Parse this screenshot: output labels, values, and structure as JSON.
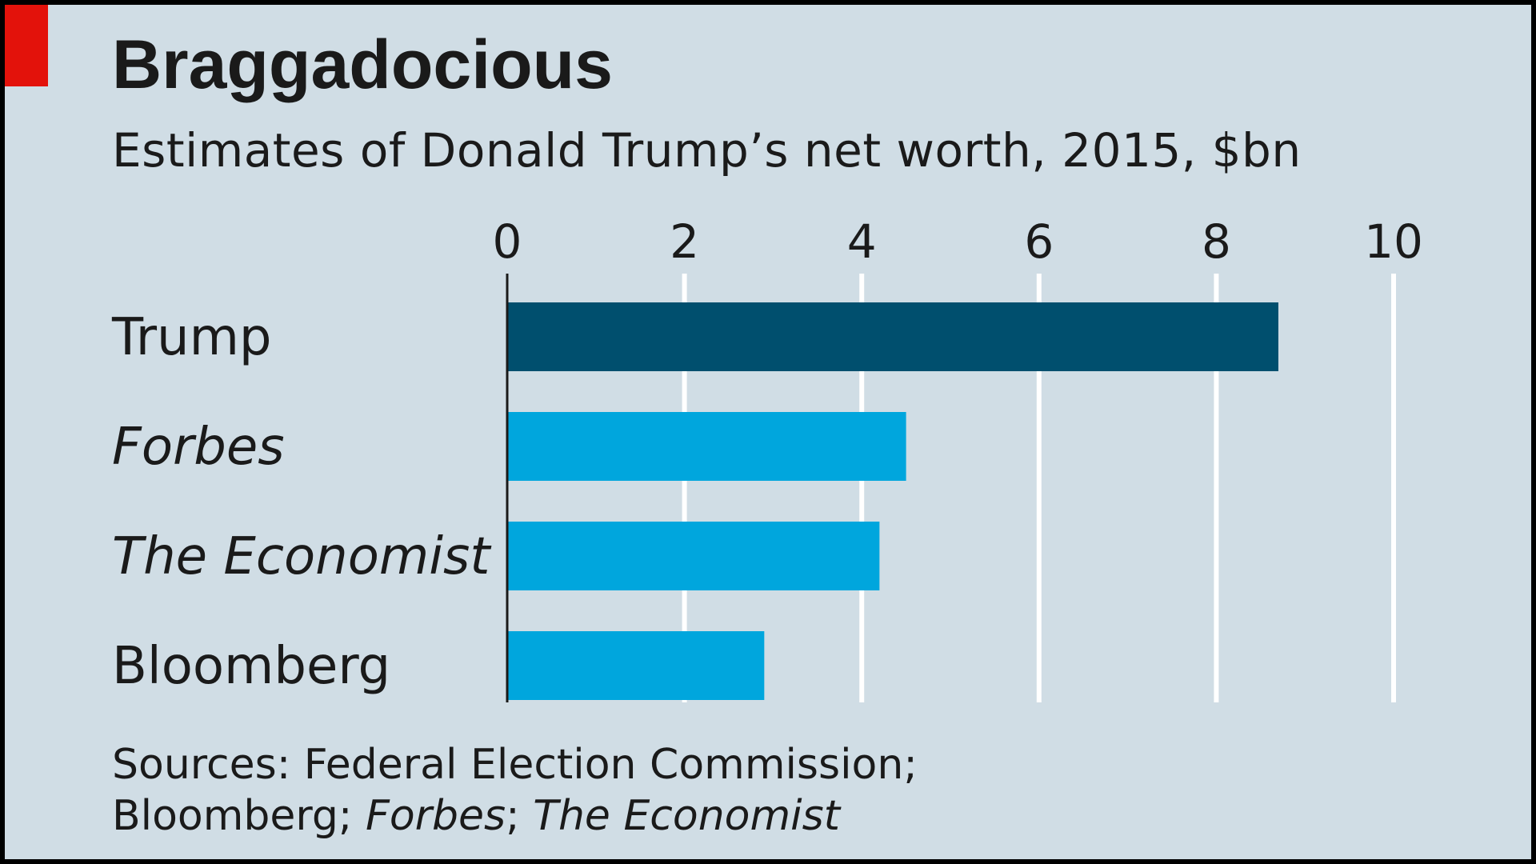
{
  "chart_data": {
    "type": "bar",
    "orientation": "horizontal",
    "title": "Braggadocious",
    "subtitle": "Estimates of Donald Trump’s net worth, 2015, $bn",
    "categories": [
      "Trump",
      "Forbes",
      "The Economist",
      "Bloomberg"
    ],
    "values": [
      8.7,
      4.5,
      4.2,
      2.9
    ],
    "xlim": [
      0,
      10
    ],
    "xticks": [
      0,
      2,
      4,
      6,
      8,
      10
    ],
    "xtick_labels": [
      "0",
      "2",
      "4",
      "6",
      "8",
      "10"
    ],
    "grid": true,
    "bar_colors": [
      "#004f6e",
      "#00a6dd",
      "#00a6dd",
      "#00a6dd"
    ],
    "italic_categories": [
      false,
      true,
      true,
      false
    ],
    "background": "#d0dde5",
    "accent": "#e3120b"
  },
  "source": {
    "prefix": "Sources: Federal Election Commission;",
    "line2_a": "Bloomberg; ",
    "line2_b": "Forbes",
    "line2_c": "; ",
    "line2_d": "The Economist"
  }
}
